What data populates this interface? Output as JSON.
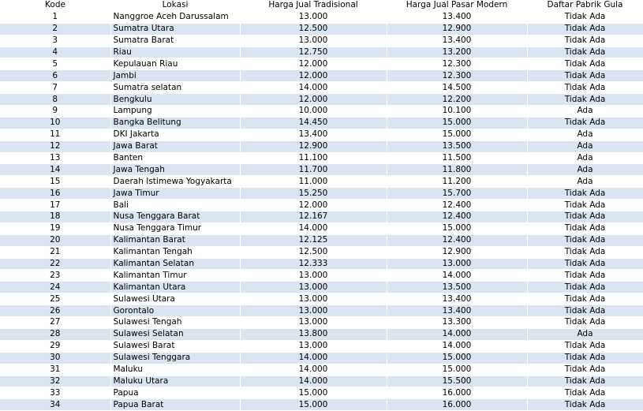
{
  "headers": {
    "kode": "Kode",
    "lokasi": "Lokasi",
    "tradisional": "Harga Jual Tradisional",
    "modern": "Harga Jual Pasar Modern",
    "gula": "Daftar Pabrik Gula"
  },
  "rows": [
    {
      "kode": "1",
      "lokasi": "Nanggroe Aceh Darussalam",
      "tradisional": "13.000",
      "modern": "13.400",
      "gula": "Tidak Ada"
    },
    {
      "kode": "2",
      "lokasi": "Sumatra Utara",
      "tradisional": "12.500",
      "modern": "12.900",
      "gula": "Tidak Ada"
    },
    {
      "kode": "3",
      "lokasi": "Sumatra Barat",
      "tradisional": "13.000",
      "modern": "13.400",
      "gula": "Tidak Ada"
    },
    {
      "kode": "4",
      "lokasi": "Riau",
      "tradisional": "12.750",
      "modern": "13.200",
      "gula": "Tidak Ada"
    },
    {
      "kode": "5",
      "lokasi": "Kepulauan Riau",
      "tradisional": "12.000",
      "modern": "12.300",
      "gula": "Tidak Ada"
    },
    {
      "kode": "6",
      "lokasi": "Jambi",
      "tradisional": "12.000",
      "modern": "12.300",
      "gula": "Tidak Ada"
    },
    {
      "kode": "7",
      "lokasi": "Sumatra selatan",
      "tradisional": "14.000",
      "modern": "14.500",
      "gula": "Tidak Ada"
    },
    {
      "kode": "8",
      "lokasi": "Bengkulu",
      "tradisional": "12.000",
      "modern": "12.200",
      "gula": "Tidak Ada"
    },
    {
      "kode": "9",
      "lokasi": "Lampung",
      "tradisional": "10.000",
      "modern": "10.100",
      "gula": "Ada"
    },
    {
      "kode": "10",
      "lokasi": "Bangka Belitung",
      "tradisional": "14.450",
      "modern": "15.000",
      "gula": "Tidak Ada"
    },
    {
      "kode": "11",
      "lokasi": "DKI Jakarta",
      "tradisional": "13.400",
      "modern": "15.000",
      "gula": "Ada"
    },
    {
      "kode": "12",
      "lokasi": "Jawa Barat",
      "tradisional": "12.900",
      "modern": "13.500",
      "gula": "Ada"
    },
    {
      "kode": "13",
      "lokasi": "Banten",
      "tradisional": "11.100",
      "modern": "11.500",
      "gula": "Ada"
    },
    {
      "kode": "14",
      "lokasi": "Jawa Tengah",
      "tradisional": "11.700",
      "modern": "11.800",
      "gula": "Ada"
    },
    {
      "kode": "15",
      "lokasi": "Daerah Istimewa Yogyakarta",
      "tradisional": "11.000",
      "modern": "11.200",
      "gula": "Ada"
    },
    {
      "kode": "16",
      "lokasi": "Jawa Timur",
      "tradisional": "15.250",
      "modern": "15.700",
      "gula": "Tidak Ada"
    },
    {
      "kode": "17",
      "lokasi": "Bali",
      "tradisional": "12.000",
      "modern": "12.400",
      "gula": "Tidak Ada"
    },
    {
      "kode": "18",
      "lokasi": "Nusa Tenggara Barat",
      "tradisional": "12.167",
      "modern": "12.400",
      "gula": "Tidak Ada"
    },
    {
      "kode": "19",
      "lokasi": "Nusa Tenggara Timur",
      "tradisional": "14.000",
      "modern": "15.000",
      "gula": "Tidak Ada"
    },
    {
      "kode": "20",
      "lokasi": "Kalimantan Barat",
      "tradisional": "12.125",
      "modern": "12.400",
      "gula": "Tidak Ada"
    },
    {
      "kode": "21",
      "lokasi": "Kalimantan Tengah",
      "tradisional": "12.500",
      "modern": "12.900",
      "gula": "Tidak Ada"
    },
    {
      "kode": "22",
      "lokasi": "Kalimantan Selatan",
      "tradisional": "12.333",
      "modern": "13.000",
      "gula": "Tidak Ada"
    },
    {
      "kode": "23",
      "lokasi": "Kalimantan Timur",
      "tradisional": "13.000",
      "modern": "14.000",
      "gula": "Tidak Ada"
    },
    {
      "kode": "24",
      "lokasi": "Kalimantan Utara",
      "tradisional": "13.000",
      "modern": "13.500",
      "gula": "Tidak Ada"
    },
    {
      "kode": "25",
      "lokasi": "Sulawesi Utara",
      "tradisional": "13.000",
      "modern": "13.400",
      "gula": "Tidak Ada"
    },
    {
      "kode": "26",
      "lokasi": "Gorontalo",
      "tradisional": "13.000",
      "modern": "13.400",
      "gula": "Tidak Ada"
    },
    {
      "kode": "27",
      "lokasi": "Sulawesi Tengah",
      "tradisional": "13.000",
      "modern": "13.300",
      "gula": "Tidak Ada"
    },
    {
      "kode": "28",
      "lokasi": "Sulawesi Selatan",
      "tradisional": "13.800",
      "modern": "14.000",
      "gula": "Ada"
    },
    {
      "kode": "29",
      "lokasi": "Sulawesi Barat",
      "tradisional": "13.000",
      "modern": "14.000",
      "gula": "Tidak Ada"
    },
    {
      "kode": "30",
      "lokasi": "Sulawesi Tenggara",
      "tradisional": "14.000",
      "modern": "15.000",
      "gula": "Tidak Ada"
    },
    {
      "kode": "31",
      "lokasi": "Maluku",
      "tradisional": "14.000",
      "modern": "15.000",
      "gula": "Tidak Ada"
    },
    {
      "kode": "32",
      "lokasi": "Maluku Utara",
      "tradisional": "14.000",
      "modern": "15.500",
      "gula": "Tidak Ada"
    },
    {
      "kode": "33",
      "lokasi": "Papua",
      "tradisional": "15.000",
      "modern": "16.000",
      "gula": "Tidak Ada"
    },
    {
      "kode": "34",
      "lokasi": "Papua Barat",
      "tradisional": "15.000",
      "modern": "16.000",
      "gula": "Tidak Ada"
    }
  ]
}
